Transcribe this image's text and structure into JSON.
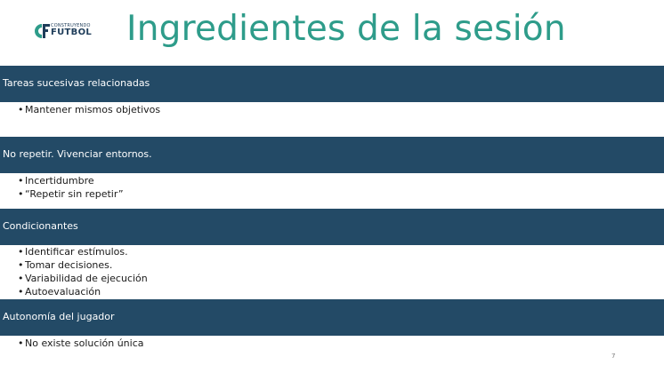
{
  "logo": {
    "brand_small": "CONSTRUYENDO",
    "brand_big": "FUTBOL",
    "accent_color": "#2e9c8a",
    "dark_color": "#1f3d5a"
  },
  "title": "Ingredientes de la sesión",
  "colors": {
    "title": "#2e9c8a",
    "bar": "#234a66",
    "text": "#1a1a1a"
  },
  "sections": [
    {
      "heading": "Tareas sucesivas relacionadas",
      "bullets": [
        "Mantener mismos objetivos"
      ]
    },
    {
      "heading": "No repetir. Vivenciar entornos.",
      "bullets": [
        "Incertidumbre",
        "“Repetir sin repetir”"
      ]
    },
    {
      "heading": "Condicionantes",
      "bullets": [
        "Identificar estímulos.",
        "Tomar decisiones.",
        "Variabilidad de ejecución",
        "Autoevaluación"
      ]
    },
    {
      "heading": "Autonomía del jugador",
      "bullets": [
        "No existe solución única"
      ]
    }
  ],
  "bullet_char": "•",
  "page_number": "7"
}
